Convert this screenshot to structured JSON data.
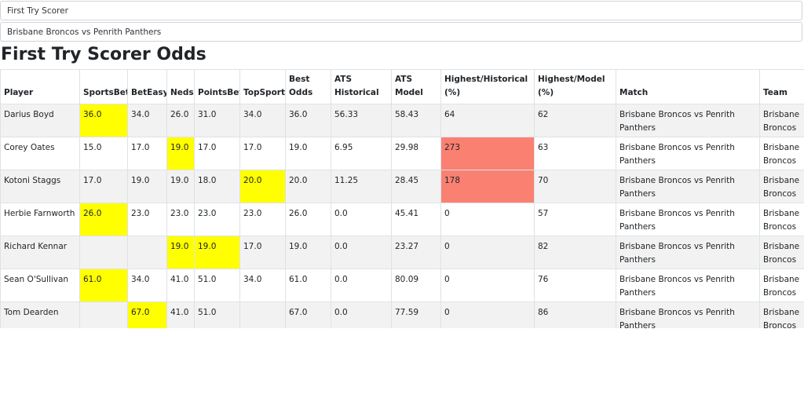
{
  "selectors": {
    "market": "First Try Scorer",
    "match": "Brisbane Broncos vs Penrith Panthers"
  },
  "page_title": "First Try Scorer Odds",
  "colors": {
    "highlight_best": "#ffff00",
    "highlight_value": "#fa8072",
    "row_stripe": "#f2f2f2"
  },
  "table": {
    "headers": {
      "player": "Player",
      "sportsbet": "SportsBet",
      "beteasy": "BetEasy",
      "neds": "Neds",
      "pointsbet": "PointsBet",
      "topsport": "TopSport",
      "best_odds": "Best Odds",
      "ats_historical": "ATS Historical",
      "ats_model": "ATS Model",
      "highest_historical": "Highest/Historical (%)",
      "highest_model": "Highest/Model (%)",
      "match": "Match",
      "team": "Team"
    },
    "rows": [
      {
        "player": "Darius Boyd",
        "sportsbet": "36.0",
        "beteasy": "34.0",
        "neds": "26.0",
        "pointsbet": "31.0",
        "topsport": "34.0",
        "best_odds": "36.0",
        "ats_historical": "56.33",
        "ats_model": "58.43",
        "highest_historical": "64",
        "highest_model": "62",
        "match": "Brisbane Broncos vs Penrith Panthers",
        "team": "Brisbane Broncos",
        "highlight": [
          "sportsbet"
        ],
        "red": []
      },
      {
        "player": "Corey Oates",
        "sportsbet": "15.0",
        "beteasy": "17.0",
        "neds": "19.0",
        "pointsbet": "17.0",
        "topsport": "17.0",
        "best_odds": "19.0",
        "ats_historical": "6.95",
        "ats_model": "29.98",
        "highest_historical": "273",
        "highest_model": "63",
        "match": "Brisbane Broncos vs Penrith Panthers",
        "team": "Brisbane Broncos",
        "highlight": [
          "neds"
        ],
        "red": [
          "highest_historical"
        ]
      },
      {
        "player": "Kotoni Staggs",
        "sportsbet": "17.0",
        "beteasy": "19.0",
        "neds": "19.0",
        "pointsbet": "18.0",
        "topsport": "20.0",
        "best_odds": "20.0",
        "ats_historical": "11.25",
        "ats_model": "28.45",
        "highest_historical": "178",
        "highest_model": "70",
        "match": "Brisbane Broncos vs Penrith Panthers",
        "team": "Brisbane Broncos",
        "highlight": [
          "topsport"
        ],
        "red": [
          "highest_historical"
        ]
      },
      {
        "player": "Herbie Farnworth",
        "sportsbet": "26.0",
        "beteasy": "23.0",
        "neds": "23.0",
        "pointsbet": "23.0",
        "topsport": "23.0",
        "best_odds": "26.0",
        "ats_historical": "0.0",
        "ats_model": "45.41",
        "highest_historical": "0",
        "highest_model": "57",
        "match": "Brisbane Broncos vs Penrith Panthers",
        "team": "Brisbane Broncos",
        "highlight": [
          "sportsbet"
        ],
        "red": []
      },
      {
        "player": "Richard Kennar",
        "sportsbet": "",
        "beteasy": "",
        "neds": "19.0",
        "pointsbet": "19.0",
        "topsport": "17.0",
        "best_odds": "19.0",
        "ats_historical": "0.0",
        "ats_model": "23.27",
        "highest_historical": "0",
        "highest_model": "82",
        "match": "Brisbane Broncos vs Penrith Panthers",
        "team": "Brisbane Broncos",
        "highlight": [
          "neds",
          "pointsbet"
        ],
        "red": []
      },
      {
        "player": "Sean O'Sullivan",
        "sportsbet": "61.0",
        "beteasy": "34.0",
        "neds": "41.0",
        "pointsbet": "51.0",
        "topsport": "34.0",
        "best_odds": "61.0",
        "ats_historical": "0.0",
        "ats_model": "80.09",
        "highest_historical": "0",
        "highest_model": "76",
        "match": "Brisbane Broncos vs Penrith Panthers",
        "team": "Brisbane Broncos",
        "highlight": [
          "sportsbet"
        ],
        "red": []
      },
      {
        "player": "Tom Dearden",
        "sportsbet": "",
        "beteasy": "67.0",
        "neds": "41.0",
        "pointsbet": "51.0",
        "topsport": "",
        "best_odds": "67.0",
        "ats_historical": "0.0",
        "ats_model": "77.59",
        "highest_historical": "0",
        "highest_model": "86",
        "match": "Brisbane Broncos vs Penrith Panthers",
        "team": "Brisbane Broncos",
        "highlight": [
          "beteasy"
        ],
        "red": []
      }
    ]
  }
}
